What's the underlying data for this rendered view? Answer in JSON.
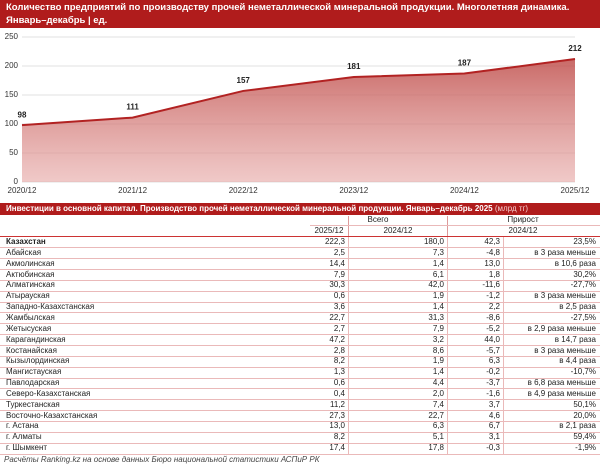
{
  "chart_data": {
    "type": "area",
    "title": "Количество предприятий по производству прочей неметаллической минеральной продукции. Многолетняя динамика. Январь–декабрь | ед.",
    "categories": [
      "2020/12",
      "2021/12",
      "2022/12",
      "2023/12",
      "2024/12",
      "2025/12"
    ],
    "values": [
      98,
      111,
      157,
      181,
      187,
      212
    ],
    "color": "#b22222",
    "ylim": [
      0,
      250
    ],
    "yticks": [
      0,
      50,
      100,
      150,
      200,
      250
    ],
    "grid": true
  },
  "table": {
    "title": "Инвестиции в основной капитал. Производство прочей неметаллической минеральной продукции. Январь–декабрь 2025",
    "unit": "(млрд тг)",
    "groups": [
      "Всего",
      "Прирост"
    ],
    "subheaders": [
      "2025/12",
      "2024/12",
      "2024/12"
    ],
    "rows": [
      [
        "Казахстан",
        "222,3",
        "180,0",
        "42,3",
        "23,5%"
      ],
      [
        "Абайская",
        "2,5",
        "7,3",
        "-4,8",
        "в 3 раза меньше"
      ],
      [
        "Акмолинская",
        "14,4",
        "1,4",
        "13,0",
        "в 10,6 раза"
      ],
      [
        "Актюбинская",
        "7,9",
        "6,1",
        "1,8",
        "30,2%"
      ],
      [
        "Алматинская",
        "30,3",
        "42,0",
        "-11,6",
        "-27,7%"
      ],
      [
        "Атырауская",
        "0,6",
        "1,9",
        "-1,2",
        "в 3 раза меньше"
      ],
      [
        "Западно-Казахстанская",
        "3,6",
        "1,4",
        "2,2",
        "в 2,5 раза"
      ],
      [
        "Жамбылская",
        "22,7",
        "31,3",
        "-8,6",
        "-27,5%"
      ],
      [
        "Жетысуская",
        "2,7",
        "7,9",
        "-5,2",
        "в 2,9 раза меньше"
      ],
      [
        "Карагандинская",
        "47,2",
        "3,2",
        "44,0",
        "в 14,7 раза"
      ],
      [
        "Костанайская",
        "2,8",
        "8,6",
        "-5,7",
        "в 3 раза меньше"
      ],
      [
        "Кызылординская",
        "8,2",
        "1,9",
        "6,3",
        "в 4,4 раза"
      ],
      [
        "Мангистауская",
        "1,3",
        "1,4",
        "-0,2",
        "-10,7%"
      ],
      [
        "Павлодарская",
        "0,6",
        "4,4",
        "-3,7",
        "в 6,8 раза меньше"
      ],
      [
        "Северо-Казахстанская",
        "0,4",
        "2,0",
        "-1,6",
        "в 4,9 раза меньше"
      ],
      [
        "Туркестанская",
        "11,2",
        "7,4",
        "3,7",
        "50,1%"
      ],
      [
        "Восточно-Казахстанская",
        "27,3",
        "22,7",
        "4,6",
        "20,0%"
      ],
      [
        "г. Астана",
        "13,0",
        "6,3",
        "6,7",
        "в 2,1 раза"
      ],
      [
        "г. Алматы",
        "8,2",
        "5,1",
        "3,1",
        "59,4%"
      ],
      [
        "г. Шымкент",
        "17,4",
        "17,8",
        "-0,3",
        "-1,9%"
      ]
    ],
    "footer": "Расчёты Ranking.kz на основе данных Бюро национальной статистики АСПиР РК"
  }
}
